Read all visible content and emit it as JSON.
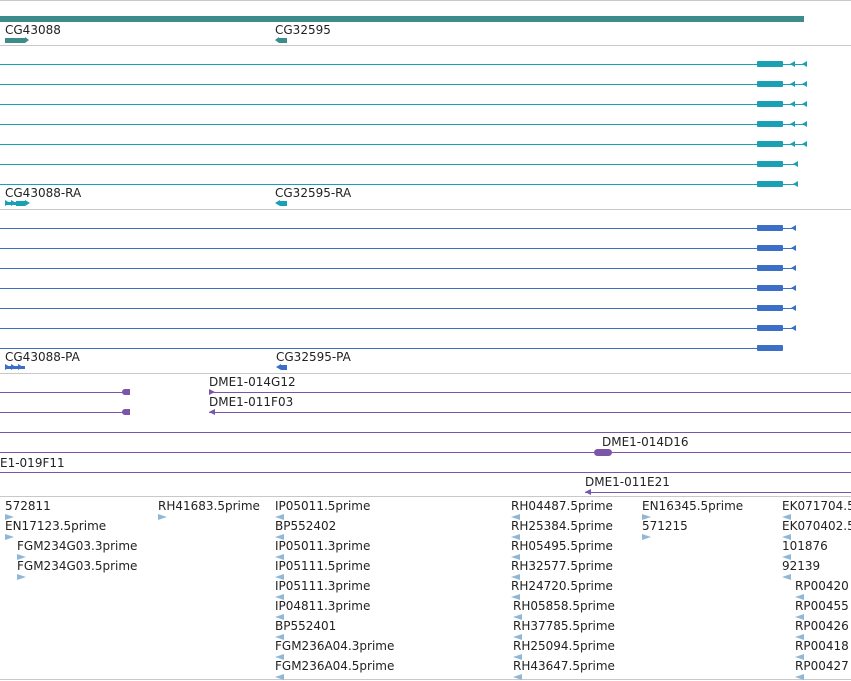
{
  "colors": {
    "gene": "#3c8c8c",
    "transcript_ra": "#1aa0b4",
    "transcript_pa": "#3b6fc8",
    "clone": "#7a55a8",
    "est": "#8fb8d8",
    "separator": "#c8c8c8"
  },
  "tracks": {
    "genes": {
      "labels": [
        "CG43088",
        "CG32595"
      ]
    },
    "transcripts_ra": {
      "labels": [
        "CG43088-RA",
        "CG32595-RA"
      ]
    },
    "transcripts_pa": {
      "labels": [
        "CG43088-PA",
        "CG32595-PA"
      ]
    },
    "clones": {
      "labels": [
        "DME1-014G12",
        "DME1-011F03",
        "DME1-014D16",
        "E1-019F11",
        "DME1-011E21"
      ]
    },
    "ests": {
      "col1": [
        "572811",
        "EN17123.5prime",
        "FGM234G03.3prime",
        "FGM234G03.5prime"
      ],
      "col2": [
        "RH41683.5prime"
      ],
      "col3": [
        "IP05011.5prime",
        "BP552402",
        "IP05011.3prime",
        "IP05111.5prime",
        "IP05111.3prime",
        "IP04811.3prime",
        "BP552401",
        "FGM236A04.3prime",
        "FGM236A04.5prime"
      ],
      "col4": [
        "RH04487.5prime",
        "RH25384.5prime",
        "RH05495.5prime",
        "RH32577.5prime",
        "RH24720.5prime",
        "RH05858.5prime",
        "RH37785.5prime",
        "RH25094.5prime",
        "RH43647.5prime"
      ],
      "col5": [
        "EN16345.5prime",
        "571215"
      ],
      "col6": [
        "EK071704.5",
        "EK070402.5",
        "101876",
        "92139",
        "RP00420",
        "RP00455",
        "RP00426",
        "RP00418",
        "RP00427"
      ]
    }
  }
}
